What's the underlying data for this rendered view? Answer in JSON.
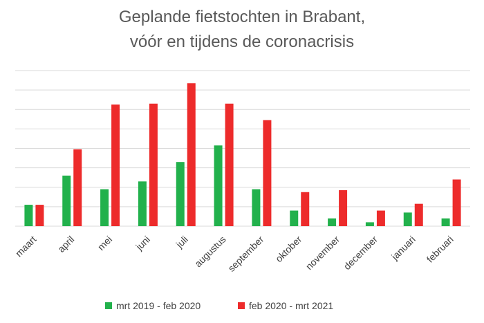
{
  "chart_data": {
    "type": "bar",
    "title": [
      "Geplande fietstochten in Brabant,",
      "vóór en tijdens de coronacrisis"
    ],
    "xlabel": "",
    "ylabel": "",
    "categories": [
      "maart",
      "april",
      "mei",
      "juni",
      "juli",
      "augustus",
      "september",
      "oktober",
      "november",
      "december",
      "januari",
      "februari"
    ],
    "series": [
      {
        "name": "mrt 2019 - feb 2020",
        "color": "#22b14c",
        "values": [
          1.1,
          2.6,
          1.9,
          2.3,
          3.3,
          4.15,
          1.9,
          0.8,
          0.4,
          0.2,
          0.7,
          0.4
        ]
      },
      {
        "name": "feb 2020 - mrt 2021",
        "color": "#ed2b2b",
        "values": [
          1.1,
          3.95,
          6.25,
          6.3,
          7.35,
          6.3,
          5.45,
          1.75,
          1.85,
          0.8,
          1.15,
          2.4
        ]
      }
    ],
    "ylim": [
      0,
      8
    ],
    "y_ticks": 8,
    "grid": true,
    "legend_position": "bottom"
  }
}
